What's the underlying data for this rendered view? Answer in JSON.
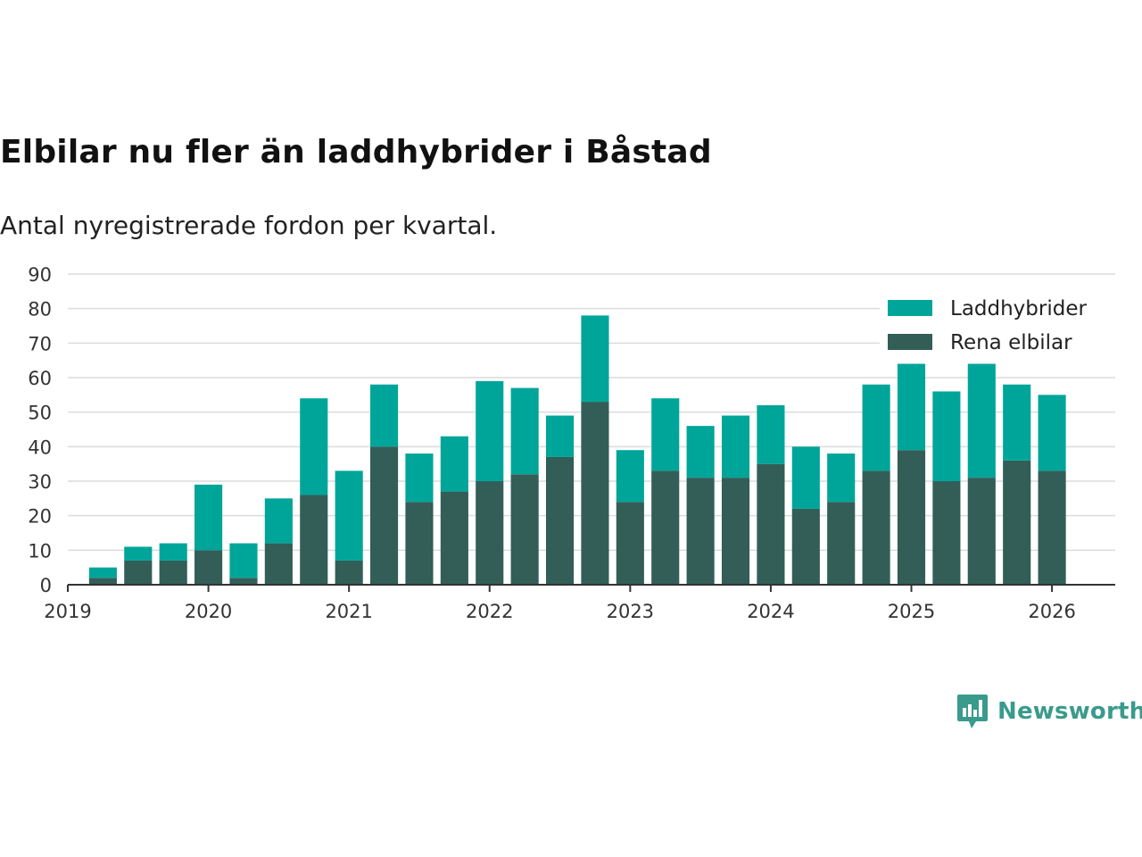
{
  "title": "Elbilar nu fler än laddhybrider i Båstad",
  "subtitle": "Antal nyregistrerade fordon per kvartal.",
  "brand": "Newsworthy",
  "colors": {
    "laddhybrider": "#00a59a",
    "elbilar": "#325e57",
    "grid": "#dcdcdc",
    "axis": "#333333",
    "brand": "#3a9a8c"
  },
  "chart_data": {
    "type": "bar",
    "stacked": true,
    "title": "Elbilar nu fler än laddhybrider i Båstad",
    "subtitle": "Antal nyregistrerade fordon per kvartal.",
    "ylim": [
      0,
      90
    ],
    "yticks": [
      0,
      10,
      20,
      30,
      40,
      50,
      60,
      70,
      80,
      90
    ],
    "xlim": [
      2019.0,
      2026.45
    ],
    "xticks": [
      2019,
      2020,
      2021,
      2022,
      2023,
      2024,
      2025,
      2026
    ],
    "x": [
      2019.25,
      2019.5,
      2019.75,
      2020.0,
      2020.25,
      2020.5,
      2020.75,
      2021.0,
      2021.25,
      2021.5,
      2021.75,
      2022.0,
      2022.25,
      2022.5,
      2022.75,
      2023.0,
      2023.25,
      2023.5,
      2023.75,
      2024.0,
      2024.25,
      2024.5,
      2024.75,
      2025.0,
      2025.25,
      2025.5,
      2025.75,
      2026.0
    ],
    "series": [
      {
        "name": "Rena elbilar",
        "color": "#325e57",
        "values": [
          2,
          7,
          7,
          10,
          2,
          12,
          26,
          7,
          40,
          24,
          27,
          30,
          32,
          37,
          53,
          24,
          33,
          31,
          31,
          35,
          22,
          24,
          33,
          39,
          30,
          31,
          36,
          33
        ]
      },
      {
        "name": "Laddhybrider",
        "color": "#00a59a",
        "values": [
          3,
          4,
          5,
          19,
          10,
          13,
          28,
          26,
          18,
          14,
          16,
          29,
          25,
          12,
          25,
          15,
          21,
          15,
          18,
          17,
          18,
          14,
          25,
          25,
          26,
          33,
          22,
          22
        ]
      }
    ],
    "legend": {
      "placement": "top-right",
      "entries": [
        "Laddhybrider",
        "Rena elbilar"
      ]
    }
  }
}
